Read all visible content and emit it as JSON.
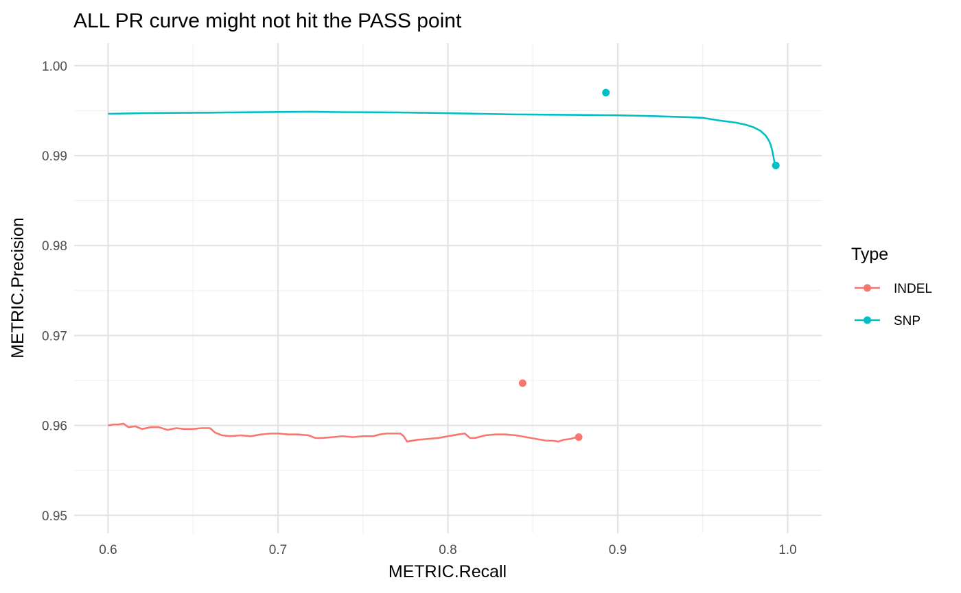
{
  "chart_data": {
    "type": "line",
    "title": "ALL PR curve might not hit the PASS point",
    "xlabel": "METRIC.Recall",
    "ylabel": "METRIC.Precision",
    "xlim": [
      0.58,
      1.02
    ],
    "ylim": [
      0.948,
      1.0025
    ],
    "x_ticks": [
      0.6,
      0.7,
      0.8,
      0.9,
      1.0
    ],
    "x_tick_labels": [
      "0.6",
      "0.7",
      "0.8",
      "0.9",
      "1.0"
    ],
    "y_ticks": [
      0.95,
      0.96,
      0.97,
      0.98,
      0.99,
      1.0
    ],
    "y_tick_labels": [
      "0.95",
      "0.96",
      "0.97",
      "0.98",
      "0.99",
      "1.00"
    ],
    "grid": true,
    "legend": {
      "title": "Type",
      "placement": "right",
      "entries": [
        "INDEL",
        "SNP"
      ]
    },
    "series": [
      {
        "name": "INDEL",
        "color": "#F8766D",
        "curve": {
          "x": [
            0.6,
            0.603,
            0.606,
            0.609,
            0.612,
            0.616,
            0.62,
            0.625,
            0.63,
            0.635,
            0.64,
            0.645,
            0.65,
            0.655,
            0.66,
            0.663,
            0.667,
            0.672,
            0.678,
            0.684,
            0.69,
            0.696,
            0.7,
            0.706,
            0.712,
            0.718,
            0.722,
            0.726,
            0.732,
            0.738,
            0.744,
            0.75,
            0.756,
            0.76,
            0.764,
            0.768,
            0.772,
            0.774,
            0.776,
            0.782,
            0.788,
            0.794,
            0.8,
            0.806,
            0.81,
            0.813,
            0.816,
            0.822,
            0.828,
            0.834,
            0.84,
            0.846,
            0.852,
            0.858,
            0.862,
            0.865,
            0.868,
            0.872,
            0.876,
            0.877
          ],
          "y": [
            0.96,
            0.9601,
            0.9601,
            0.9602,
            0.9598,
            0.9599,
            0.9596,
            0.9598,
            0.9598,
            0.9595,
            0.9597,
            0.9596,
            0.9596,
            0.9597,
            0.9597,
            0.9592,
            0.9589,
            0.9588,
            0.9589,
            0.9588,
            0.959,
            0.9591,
            0.9591,
            0.959,
            0.959,
            0.9589,
            0.9586,
            0.9586,
            0.9587,
            0.9588,
            0.9587,
            0.9588,
            0.9588,
            0.959,
            0.9591,
            0.9591,
            0.9591,
            0.9588,
            0.9582,
            0.9584,
            0.9585,
            0.9586,
            0.9588,
            0.959,
            0.9591,
            0.9586,
            0.9586,
            0.9589,
            0.959,
            0.959,
            0.9589,
            0.9587,
            0.9585,
            0.9583,
            0.9583,
            0.9582,
            0.9584,
            0.9585,
            0.9587,
            0.9587
          ]
        },
        "points": [
          {
            "x": 0.844,
            "y": 0.9647
          },
          {
            "x": 0.877,
            "y": 0.9587
          }
        ]
      },
      {
        "name": "SNP",
        "color": "#00BFC4",
        "curve": {
          "x": [
            0.6,
            0.62,
            0.64,
            0.66,
            0.68,
            0.7,
            0.72,
            0.74,
            0.76,
            0.78,
            0.8,
            0.82,
            0.84,
            0.86,
            0.88,
            0.9,
            0.92,
            0.94,
            0.95,
            0.955,
            0.96,
            0.965,
            0.97,
            0.975,
            0.98,
            0.984,
            0.987,
            0.989,
            0.99,
            0.991,
            0.9915,
            0.992,
            0.9925
          ],
          "y": [
            0.99465,
            0.99472,
            0.99475,
            0.99478,
            0.99482,
            0.99485,
            0.99487,
            0.99483,
            0.99482,
            0.99478,
            0.99472,
            0.99465,
            0.99458,
            0.99455,
            0.99452,
            0.99448,
            0.9944,
            0.99428,
            0.9942,
            0.99405,
            0.9939,
            0.99378,
            0.99365,
            0.99345,
            0.99315,
            0.99275,
            0.99225,
            0.99165,
            0.9912,
            0.9905,
            0.99,
            0.9895,
            0.989
          ]
        },
        "points": [
          {
            "x": 0.893,
            "y": 0.997
          },
          {
            "x": 0.993,
            "y": 0.9889
          }
        ]
      }
    ]
  }
}
